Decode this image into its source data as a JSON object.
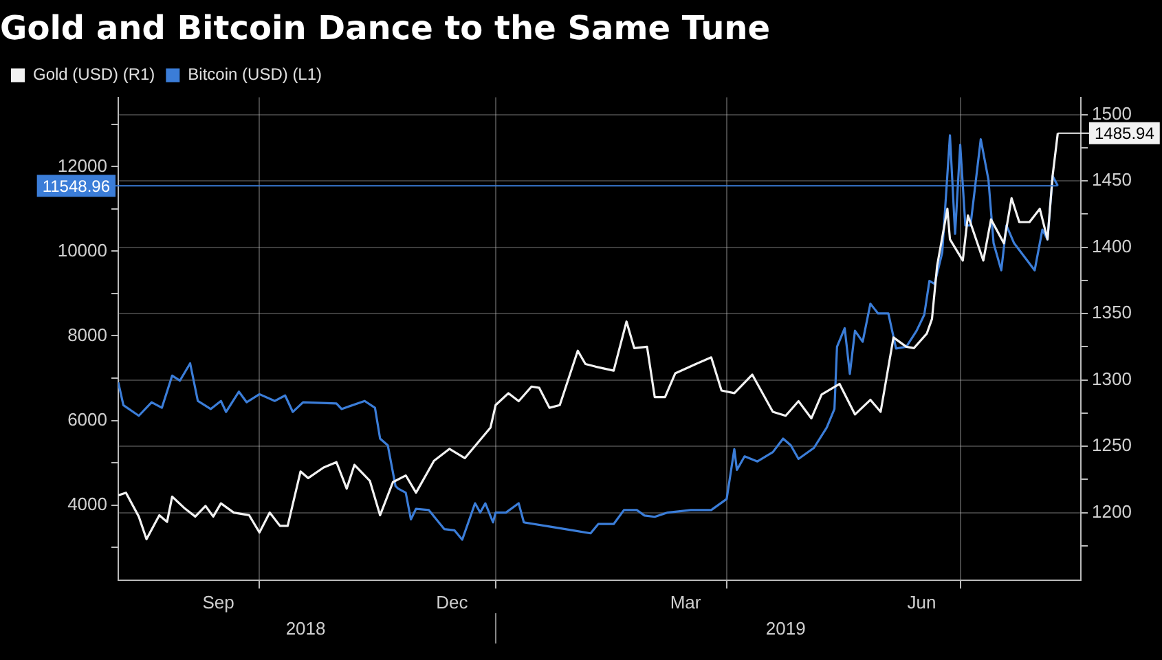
{
  "chart_data": {
    "type": "line",
    "title": "Gold and Bitcoin Dance to the Same Tune",
    "legend": "top left",
    "grid": true,
    "marker": "none",
    "xlim": [
      "2018-08-07",
      "2019-08-17"
    ],
    "xticks": [
      {
        "value": "2018-09-15",
        "label": "Sep"
      },
      {
        "value": "2018-10-01",
        "label": null
      },
      {
        "value": "2018-12-15",
        "label": "Dec"
      },
      {
        "value": "2019-01-01",
        "label": null
      },
      {
        "value": "2019-03-16",
        "label": "Mar"
      },
      {
        "value": "2019-04-01",
        "label": null
      },
      {
        "value": "2019-06-16",
        "label": "Jun"
      },
      {
        "value": "2019-07-01",
        "label": null
      }
    ],
    "x2lim": [
      "2018-08-07",
      "2019-08-17"
    ],
    "x2ticks": [
      {
        "value": "2018-10-19",
        "label": "2018"
      },
      {
        "value": "2019-01-01",
        "label": null
      },
      {
        "value": "2019-04-24",
        "label": "2019"
      }
    ],
    "ylim": [
      2220,
      13640
    ],
    "yticks": [
      {
        "value": 3000,
        "label": null
      },
      4000,
      {
        "value": 5000,
        "label": null
      },
      6000,
      {
        "value": 7000,
        "label": null
      },
      8000,
      {
        "value": 9000,
        "label": null
      },
      10000,
      {
        "value": 11000,
        "label": null
      },
      12000,
      {
        "value": 13000,
        "label": null
      }
    ],
    "y2lim": [
      1149,
      1513
    ],
    "y2ticks": [
      {
        "value": 1175,
        "label": null
      },
      1200,
      {
        "value": 1225,
        "label": null
      },
      1250,
      {
        "value": 1275,
        "label": null
      },
      1300,
      {
        "value": 1325,
        "label": null
      },
      1350,
      {
        "value": 1375,
        "label": null
      },
      1400,
      {
        "value": 1425,
        "label": null
      },
      1450,
      {
        "value": 1475,
        "label": null
      },
      1500
    ],
    "series": [
      {
        "name": "Gold (USD) (R1)",
        "color": "#f2f2f2",
        "axis": "y2",
        "x": [
          "2018-08-07",
          "2018-08-10",
          "2018-08-15",
          "2018-08-18",
          "2018-08-23",
          "2018-08-26",
          "2018-08-28",
          "2018-09-02",
          "2018-09-06",
          "2018-09-10",
          "2018-09-13",
          "2018-09-16",
          "2018-09-21",
          "2018-09-27",
          "2018-10-01",
          "2018-10-05",
          "2018-10-09",
          "2018-10-12",
          "2018-10-17",
          "2018-10-20",
          "2018-10-26",
          "2018-10-31",
          "2018-11-04",
          "2018-11-07",
          "2018-11-13",
          "2018-11-17",
          "2018-11-22",
          "2018-11-27",
          "2018-12-01",
          "2018-12-08",
          "2018-12-14",
          "2018-12-20",
          "2018-12-30",
          "2019-01-01",
          "2019-01-06",
          "2019-01-10",
          "2019-01-15",
          "2019-01-18",
          "2019-01-22",
          "2019-01-26",
          "2019-02-02",
          "2019-02-05",
          "2019-02-09",
          "2019-02-16",
          "2019-02-21",
          "2019-02-24",
          "2019-03-01",
          "2019-03-04",
          "2019-03-08",
          "2019-03-12",
          "2019-03-20",
          "2019-03-26",
          "2019-03-30",
          "2019-04-04",
          "2019-04-11",
          "2019-04-19",
          "2019-04-24",
          "2019-04-29",
          "2019-05-04",
          "2019-05-08",
          "2019-05-15",
          "2019-05-21",
          "2019-05-27",
          "2019-05-31",
          "2019-06-05",
          "2019-06-10",
          "2019-06-13",
          "2019-06-18",
          "2019-06-20",
          "2019-06-22",
          "2019-06-26",
          "2019-06-27",
          "2019-07-02",
          "2019-07-04",
          "2019-07-10",
          "2019-07-13",
          "2019-07-18",
          "2019-07-21",
          "2019-07-24",
          "2019-07-28",
          "2019-08-01",
          "2019-08-04",
          "2019-08-06",
          "2019-08-08"
        ],
        "values": [
          1213,
          1215,
          1197,
          1180,
          1198,
          1193,
          1212,
          1203,
          1197,
          1205,
          1197,
          1207,
          1200,
          1198,
          1185,
          1200,
          1190,
          1190,
          1231,
          1226,
          1234,
          1238,
          1218,
          1236,
          1224,
          1198,
          1223,
          1228,
          1215,
          1239,
          1248,
          1241,
          1264,
          1281,
          1290,
          1284,
          1295,
          1294,
          1279,
          1281,
          1322,
          1312,
          1310,
          1307,
          1344,
          1324,
          1325,
          1287,
          1287,
          1305,
          1312,
          1317,
          1292,
          1290,
          1304,
          1276,
          1273,
          1284,
          1271,
          1289,
          1297,
          1274,
          1285,
          1276,
          1332,
          1325,
          1324,
          1335,
          1346,
          1386,
          1429,
          1406,
          1390,
          1424,
          1390,
          1421,
          1403,
          1437,
          1419,
          1419,
          1429,
          1406,
          1454,
          1485.94
        ],
        "value_labels": [
          null,
          null,
          null,
          null,
          null,
          null,
          null,
          null,
          null,
          null,
          null,
          null,
          null,
          null,
          null,
          null,
          null,
          null,
          null,
          null,
          null,
          null,
          null,
          null,
          null,
          null,
          null,
          null,
          null,
          null,
          null,
          null,
          null,
          null,
          null,
          null,
          null,
          null,
          null,
          null,
          null,
          null,
          null,
          null,
          null,
          null,
          null,
          null,
          null,
          null,
          null,
          null,
          null,
          null,
          null,
          null,
          null,
          null,
          null,
          null,
          null,
          null,
          null,
          null,
          null,
          null,
          null,
          null,
          null,
          null,
          null,
          null,
          null,
          null,
          null,
          null,
          null,
          null,
          null,
          null,
          null,
          null,
          null,
          "1485.94"
        ]
      },
      {
        "name": "Bitcoin (USD) (L1)",
        "color": "#3b7dd8",
        "axis": "y",
        "x": [
          "2018-08-07",
          "2018-08-09",
          "2018-08-15",
          "2018-08-20",
          "2018-08-24",
          "2018-08-28",
          "2018-08-31",
          "2018-09-04",
          "2018-09-07",
          "2018-09-12",
          "2018-09-16",
          "2018-09-18",
          "2018-09-23",
          "2018-09-26",
          "2018-10-01",
          "2018-10-07",
          "2018-10-11",
          "2018-10-14",
          "2018-10-18",
          "2018-10-31",
          "2018-11-02",
          "2018-11-11",
          "2018-11-15",
          "2018-11-17",
          "2018-11-20",
          "2018-11-23",
          "2018-11-24",
          "2018-11-27",
          "2018-11-29",
          "2018-12-01",
          "2018-12-06",
          "2018-12-12",
          "2018-12-16",
          "2018-12-19",
          "2018-12-24",
          "2018-12-26",
          "2018-12-28",
          "2018-12-31",
          "2019-01-01",
          "2019-01-05",
          "2019-01-10",
          "2019-01-12",
          "2019-01-22",
          "2019-01-31",
          "2019-02-07",
          "2019-02-10",
          "2019-02-16",
          "2019-02-20",
          "2019-02-25",
          "2019-02-28",
          "2019-03-04",
          "2019-03-09",
          "2019-03-18",
          "2019-03-26",
          "2019-04-01",
          "2019-04-04",
          "2019-04-05",
          "2019-04-08",
          "2019-04-13",
          "2019-04-19",
          "2019-04-23",
          "2019-04-26",
          "2019-04-29",
          "2019-05-05",
          "2019-05-10",
          "2019-05-13",
          "2019-05-14",
          "2019-05-17",
          "2019-05-19",
          "2019-05-21",
          "2019-05-24",
          "2019-05-27",
          "2019-05-30",
          "2019-06-03",
          "2019-06-06",
          "2019-06-10",
          "2019-06-14",
          "2019-06-17",
          "2019-06-19",
          "2019-06-21",
          "2019-06-24",
          "2019-06-27",
          "2019-06-29",
          "2019-07-01",
          "2019-07-03",
          "2019-07-05",
          "2019-07-09",
          "2019-07-12",
          "2019-07-14",
          "2019-07-17",
          "2019-07-19",
          "2019-07-22",
          "2019-07-26",
          "2019-07-30",
          "2019-08-02",
          "2019-08-04",
          "2019-08-06",
          "2019-08-08"
        ],
        "values": [
          6900,
          6360,
          6110,
          6430,
          6300,
          7060,
          6940,
          7350,
          6460,
          6270,
          6460,
          6200,
          6680,
          6430,
          6620,
          6460,
          6590,
          6200,
          6430,
          6400,
          6270,
          6460,
          6300,
          5570,
          5410,
          4450,
          4390,
          4290,
          3660,
          3910,
          3880,
          3430,
          3400,
          3180,
          4040,
          3820,
          4040,
          3590,
          3820,
          3820,
          4040,
          3590,
          3490,
          3400,
          3330,
          3550,
          3550,
          3880,
          3880,
          3750,
          3720,
          3820,
          3880,
          3880,
          4140,
          5320,
          4830,
          5150,
          5030,
          5250,
          5570,
          5410,
          5090,
          5350,
          5830,
          6270,
          7740,
          8180,
          7100,
          8120,
          7860,
          8760,
          8530,
          8530,
          7700,
          7740,
          8120,
          8500,
          9300,
          9230,
          9970,
          12740,
          10410,
          12520,
          10610,
          10610,
          12650,
          11690,
          10190,
          9550,
          10610,
          10190,
          9870,
          9550,
          10510,
          10280,
          11780,
          11548.96
        ],
        "value_labels": [
          null,
          null,
          null,
          null,
          null,
          null,
          null,
          null,
          null,
          null,
          null,
          null,
          null,
          null,
          null,
          null,
          null,
          null,
          null,
          null,
          null,
          null,
          null,
          null,
          null,
          null,
          null,
          null,
          null,
          null,
          null,
          null,
          null,
          null,
          null,
          null,
          null,
          null,
          null,
          null,
          null,
          null,
          null,
          null,
          null,
          null,
          null,
          null,
          null,
          null,
          null,
          null,
          null,
          null,
          null,
          null,
          null,
          null,
          null,
          null,
          null,
          null,
          null,
          null,
          null,
          null,
          null,
          null,
          null,
          null,
          null,
          null,
          null,
          null,
          null,
          null,
          null,
          null,
          null,
          null,
          null,
          null,
          null,
          null,
          null,
          null,
          null,
          null,
          null,
          null,
          null,
          null,
          null,
          null,
          null,
          null,
          null,
          "11548.96"
        ]
      }
    ]
  }
}
